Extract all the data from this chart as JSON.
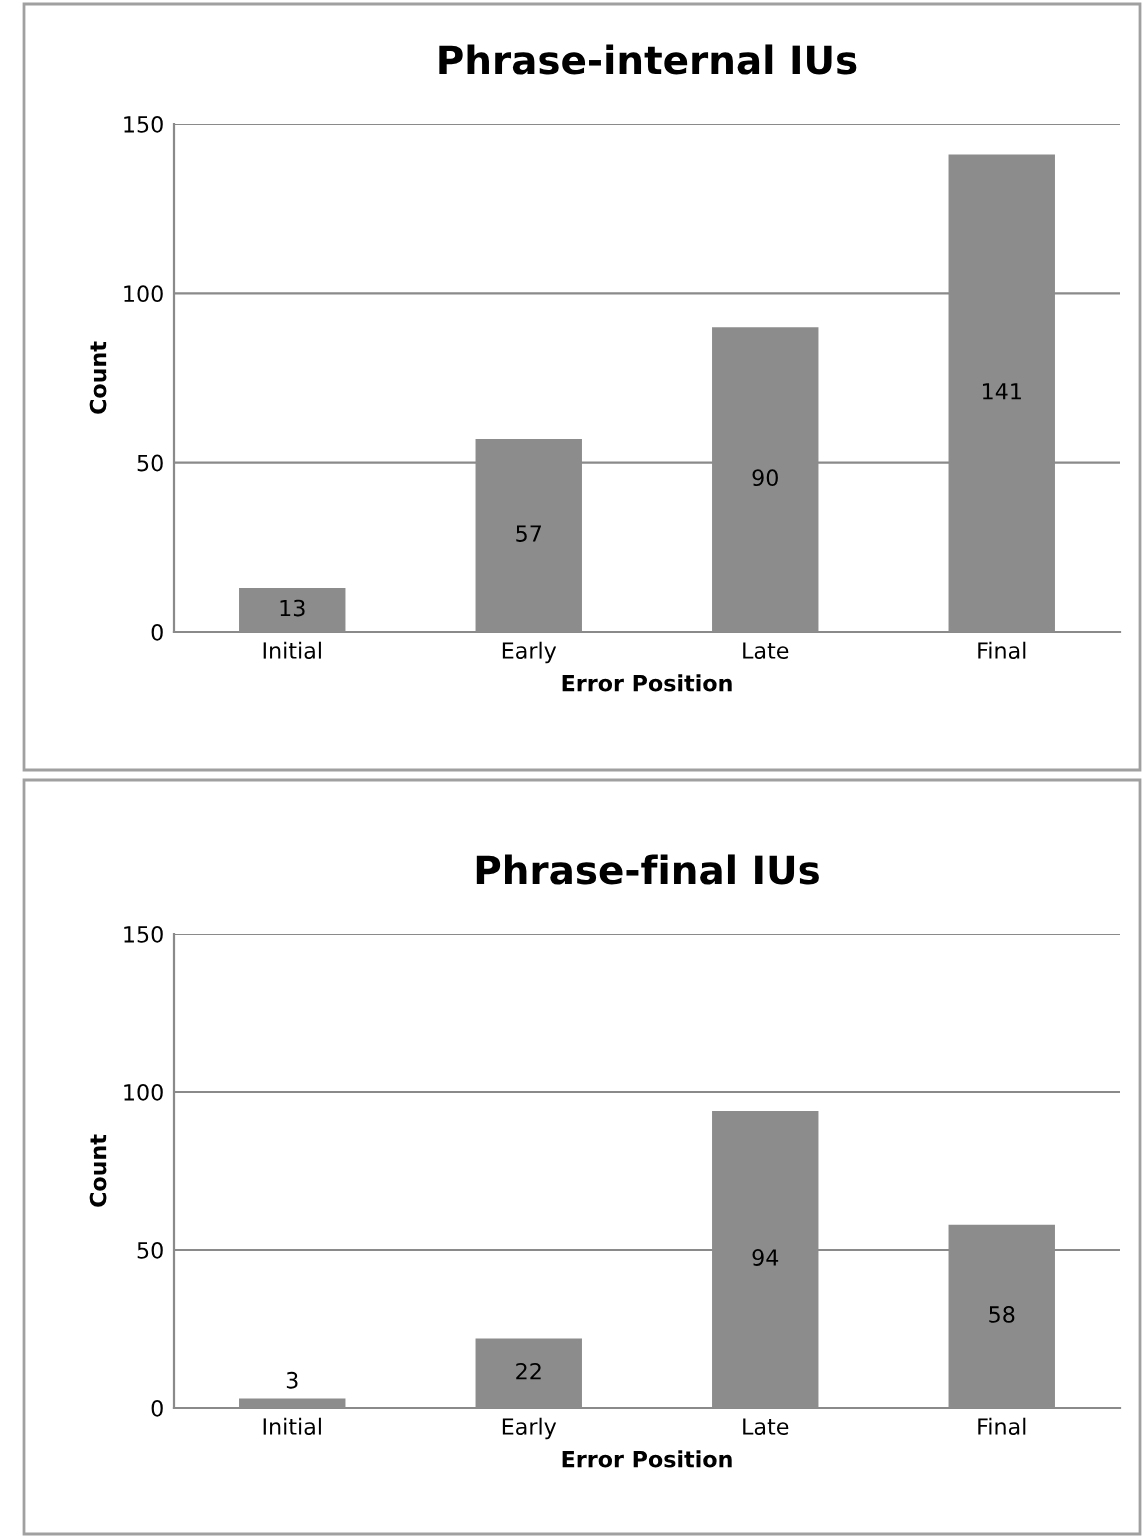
{
  "chart_data": [
    {
      "type": "bar",
      "title": "Phrase-internal IUs",
      "xlabel": "Error Position",
      "ylabel": "Count",
      "categories": [
        "Initial",
        "Early",
        "Late",
        "Final"
      ],
      "values": [
        13,
        57,
        90,
        141
      ],
      "color": "#8c8c8c",
      "ylim": [
        0,
        150
      ],
      "yticks": [
        0,
        50,
        100,
        150
      ],
      "grid": "y",
      "data_labels": true
    },
    {
      "type": "bar",
      "title": "Phrase-final IUs",
      "xlabel": "Error Position",
      "ylabel": "Count",
      "categories": [
        "Initial",
        "Early",
        "Late",
        "Final"
      ],
      "values": [
        3,
        22,
        94,
        58
      ],
      "color": "#8c8c8c",
      "ylim": [
        0,
        150
      ],
      "yticks": [
        0,
        50,
        100,
        150
      ],
      "grid": "y",
      "data_labels": true
    }
  ]
}
